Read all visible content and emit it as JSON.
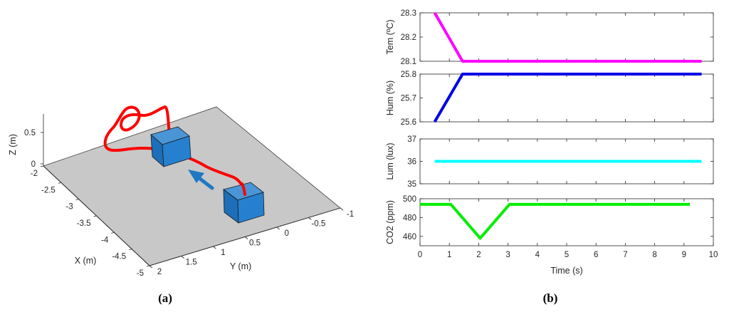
{
  "panel_labels": {
    "a": "(a)",
    "b": "(b)"
  },
  "chart_data": [
    {
      "type": "line3d",
      "panel": "(a)",
      "xlabel": "X (m)",
      "ylabel": "Y (m)",
      "zlabel": "Z (m)",
      "x_ticks": [
        "-2",
        "-2.5",
        "-3",
        "-3.5",
        "-4",
        "-4.5",
        "-5"
      ],
      "y_ticks": [
        "2",
        "1.5",
        "1",
        "0.5",
        "0",
        "-0.5",
        "-1"
      ],
      "z_ticks": [
        "0",
        "0.5"
      ],
      "objects": [
        "cube",
        "cube",
        "arrow"
      ],
      "colors": {
        "trajectory": "#ff0000",
        "cube": "#1f78c4",
        "arrow": "#1f78c4",
        "floor": "#c8c8c8"
      }
    },
    {
      "type": "line",
      "panel": "(b)",
      "xlabel": "Time (s)",
      "xlim": [
        0,
        10
      ],
      "x_ticks": [
        "0",
        "1",
        "2",
        "3",
        "4",
        "5",
        "6",
        "7",
        "8",
        "9",
        "10"
      ],
      "subplots": [
        {
          "ylabel": "Tem (ºC)",
          "ylim": [
            28.1,
            28.3
          ],
          "y_ticks": [
            "28.3",
            "28.2",
            "28.1"
          ],
          "color": "#ff00ff",
          "x": [
            0.5,
            1.45,
            9.6
          ],
          "y": [
            28.3,
            28.1,
            28.1
          ]
        },
        {
          "ylabel": "Hum (%)",
          "ylim": [
            25.6,
            25.8
          ],
          "y_ticks": [
            "25.8",
            "25.7",
            "25.6"
          ],
          "color": "#0000e6",
          "x": [
            0.5,
            1.45,
            9.6
          ],
          "y": [
            25.6,
            25.8,
            25.8
          ]
        },
        {
          "ylabel": "Lum (lux)",
          "ylim": [
            35,
            37
          ],
          "y_ticks": [
            "37",
            "36",
            "35"
          ],
          "color": "#00ffff",
          "x": [
            0.5,
            9.6
          ],
          "y": [
            36,
            36
          ]
        },
        {
          "ylabel": "CO2 (ppm)",
          "ylim": [
            450,
            500
          ],
          "y_ticks": [
            "500",
            "480",
            "460"
          ],
          "color": "#00ee00",
          "x": [
            0.0,
            1.05,
            2.05,
            3.05,
            9.2
          ],
          "y": [
            494,
            494,
            458,
            494,
            494
          ]
        }
      ]
    }
  ]
}
